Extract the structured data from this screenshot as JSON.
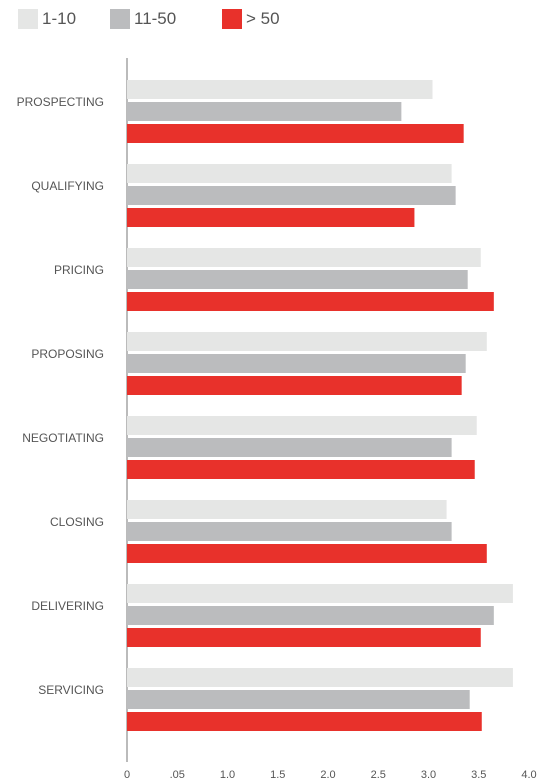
{
  "chart_data": {
    "type": "bar",
    "orientation": "horizontal",
    "categories": [
      "PROSPECTING",
      "QUALIFYING",
      "PRICING",
      "PROPOSING",
      "NEGOTIATING",
      "CLOSING",
      "DELIVERING",
      "SERVICING"
    ],
    "series": [
      {
        "name": "1-10",
        "color": "#e5e6e5",
        "values": [
          3.04,
          3.23,
          3.52,
          3.58,
          3.48,
          3.18,
          3.84,
          3.84
        ]
      },
      {
        "name": "11-50",
        "color": "#bbbcbe",
        "values": [
          2.73,
          3.27,
          3.39,
          3.37,
          3.23,
          3.23,
          3.65,
          3.41
        ]
      },
      {
        "name": "> 50",
        "color": "#e8312b",
        "values": [
          3.35,
          2.86,
          3.65,
          3.33,
          3.46,
          3.58,
          3.52,
          3.53
        ]
      }
    ],
    "x_ticks": [
      "0",
      ".05",
      "1.0",
      "1.5",
      "2.0",
      "2.5",
      "3.0",
      "3.5",
      "4.0"
    ],
    "xlim": [
      0,
      4.0
    ],
    "grid": false,
    "legend_position": "top-left"
  }
}
